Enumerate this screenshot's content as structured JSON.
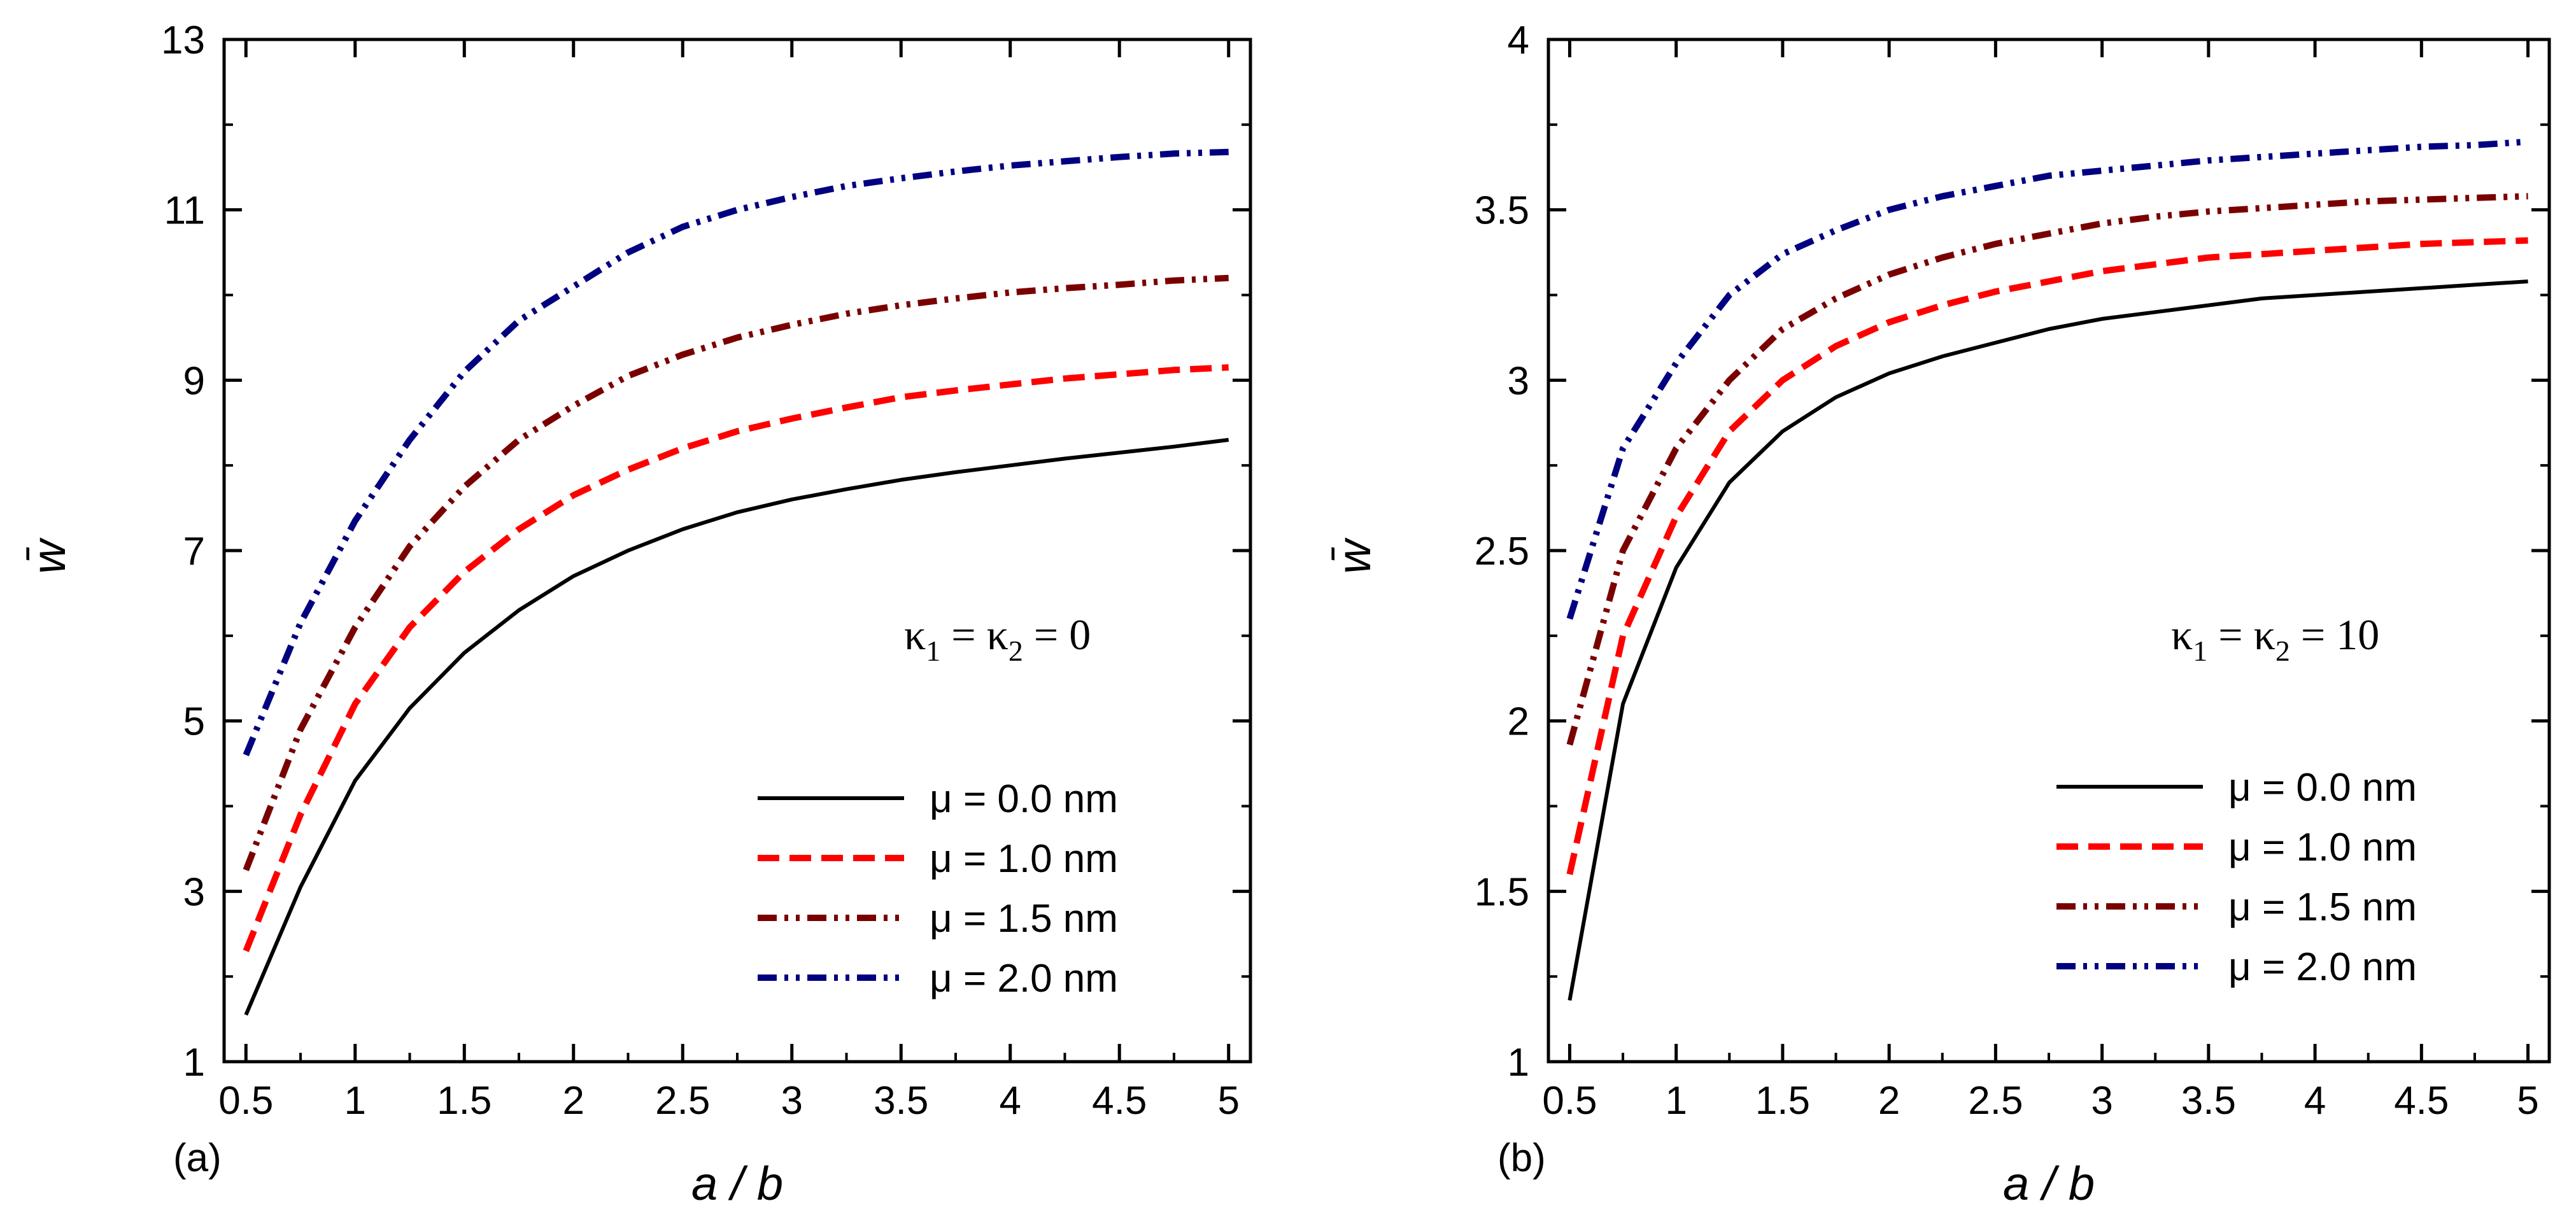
{
  "chart_data": [
    {
      "type": "line",
      "panel_label": "(a)",
      "xlabel": "a / b",
      "ylabel": "w̄",
      "xlim": [
        0.4,
        5.1
      ],
      "ylim": [
        1,
        13
      ],
      "xticks": [
        0.5,
        1,
        1.5,
        2,
        2.5,
        3,
        3.5,
        4,
        4.5,
        5
      ],
      "xtick_labels": [
        "0.5",
        "1",
        "1.5",
        "2",
        "2.5",
        "3",
        "3.5",
        "4",
        "4.5",
        "5"
      ],
      "yticks": [
        1,
        3,
        5,
        7,
        9,
        11,
        13
      ],
      "ytick_labels": [
        "1",
        "3",
        "5",
        "7",
        "9",
        "11",
        "13"
      ],
      "annotation": {
        "kappa_left": "κ",
        "sub1": "1",
        "eq1": " = κ",
        "sub2": "2",
        "eq2": " = 0"
      },
      "legend_position": "bottom-right",
      "x": [
        0.5,
        0.75,
        1.0,
        1.25,
        1.5,
        1.75,
        2.0,
        2.25,
        2.5,
        2.75,
        3.0,
        3.25,
        3.5,
        3.75,
        4.0,
        4.25,
        4.5,
        4.75,
        5.0
      ],
      "series": [
        {
          "name": "μ = 0.0 nm",
          "color": "#000000",
          "style": "solid",
          "values": [
            1.55,
            3.05,
            4.3,
            5.15,
            5.8,
            6.3,
            6.7,
            7.0,
            7.25,
            7.45,
            7.6,
            7.72,
            7.83,
            7.92,
            8.0,
            8.08,
            8.15,
            8.22,
            8.3
          ]
        },
        {
          "name": "μ = 1.0 nm",
          "color": "#ff0000",
          "style": "dash",
          "values": [
            2.3,
            3.9,
            5.2,
            6.1,
            6.75,
            7.25,
            7.65,
            7.95,
            8.2,
            8.4,
            8.55,
            8.68,
            8.8,
            8.88,
            8.95,
            9.02,
            9.07,
            9.12,
            9.15
          ]
        },
        {
          "name": "μ = 1.5 nm",
          "color": "#7a0000",
          "style": "dashdotdot",
          "values": [
            3.25,
            4.9,
            6.1,
            7.05,
            7.75,
            8.3,
            8.7,
            9.05,
            9.3,
            9.5,
            9.65,
            9.78,
            9.88,
            9.96,
            10.03,
            10.08,
            10.12,
            10.17,
            10.2
          ]
        },
        {
          "name": "μ = 2.0 nm",
          "color": "#000080",
          "style": "dashdotdot",
          "values": [
            4.6,
            6.15,
            7.35,
            8.3,
            9.1,
            9.7,
            10.1,
            10.5,
            10.8,
            11.0,
            11.15,
            11.28,
            11.37,
            11.45,
            11.52,
            11.57,
            11.62,
            11.66,
            11.68
          ]
        }
      ]
    },
    {
      "type": "line",
      "panel_label": "(b)",
      "xlabel": "a / b",
      "ylabel": "w̄",
      "xlim": [
        0.4,
        5.1
      ],
      "ylim": [
        1,
        4
      ],
      "xticks": [
        0.5,
        1,
        1.5,
        2,
        2.5,
        3,
        3.5,
        4,
        4.5,
        5
      ],
      "xtick_labels": [
        "0.5",
        "1",
        "1.5",
        "2",
        "2.5",
        "3",
        "3.5",
        "4",
        "4.5",
        "5"
      ],
      "yticks": [
        1,
        1.5,
        2,
        2.5,
        3,
        3.5,
        4
      ],
      "ytick_labels": [
        "1",
        "1.5",
        "2",
        "2.5",
        "3",
        "3.5",
        "4"
      ],
      "annotation": {
        "kappa_left": "κ",
        "sub1": "1",
        "eq1": " = κ",
        "sub2": "2",
        "eq2": " = 10"
      },
      "legend_position": "bottom-right",
      "x": [
        0.5,
        0.75,
        1.0,
        1.25,
        1.5,
        1.75,
        2.0,
        2.25,
        2.5,
        2.75,
        3.0,
        3.25,
        3.5,
        3.75,
        4.0,
        4.25,
        4.5,
        4.75,
        5.0
      ],
      "series": [
        {
          "name": "μ = 0.0 nm",
          "color": "#000000",
          "style": "solid",
          "values": [
            1.18,
            2.05,
            2.45,
            2.7,
            2.85,
            2.95,
            3.02,
            3.07,
            3.11,
            3.15,
            3.18,
            3.2,
            3.22,
            3.24,
            3.25,
            3.26,
            3.27,
            3.28,
            3.29
          ]
        },
        {
          "name": "μ = 1.0 nm",
          "color": "#ff0000",
          "style": "dash",
          "values": [
            1.55,
            2.25,
            2.6,
            2.85,
            3.0,
            3.1,
            3.17,
            3.22,
            3.26,
            3.29,
            3.32,
            3.34,
            3.36,
            3.37,
            3.38,
            3.39,
            3.4,
            3.405,
            3.41
          ]
        },
        {
          "name": "μ = 1.5 nm",
          "color": "#7a0000",
          "style": "dashdotdot",
          "values": [
            1.93,
            2.5,
            2.8,
            3.0,
            3.15,
            3.24,
            3.31,
            3.36,
            3.4,
            3.43,
            3.46,
            3.48,
            3.495,
            3.505,
            3.515,
            3.525,
            3.53,
            3.535,
            3.54
          ]
        },
        {
          "name": "μ = 2.0 nm",
          "color": "#000080",
          "style": "dashdotdot",
          "values": [
            2.3,
            2.8,
            3.05,
            3.25,
            3.37,
            3.44,
            3.5,
            3.54,
            3.57,
            3.6,
            3.615,
            3.63,
            3.645,
            3.655,
            3.665,
            3.675,
            3.685,
            3.69,
            3.7
          ]
        }
      ]
    }
  ]
}
